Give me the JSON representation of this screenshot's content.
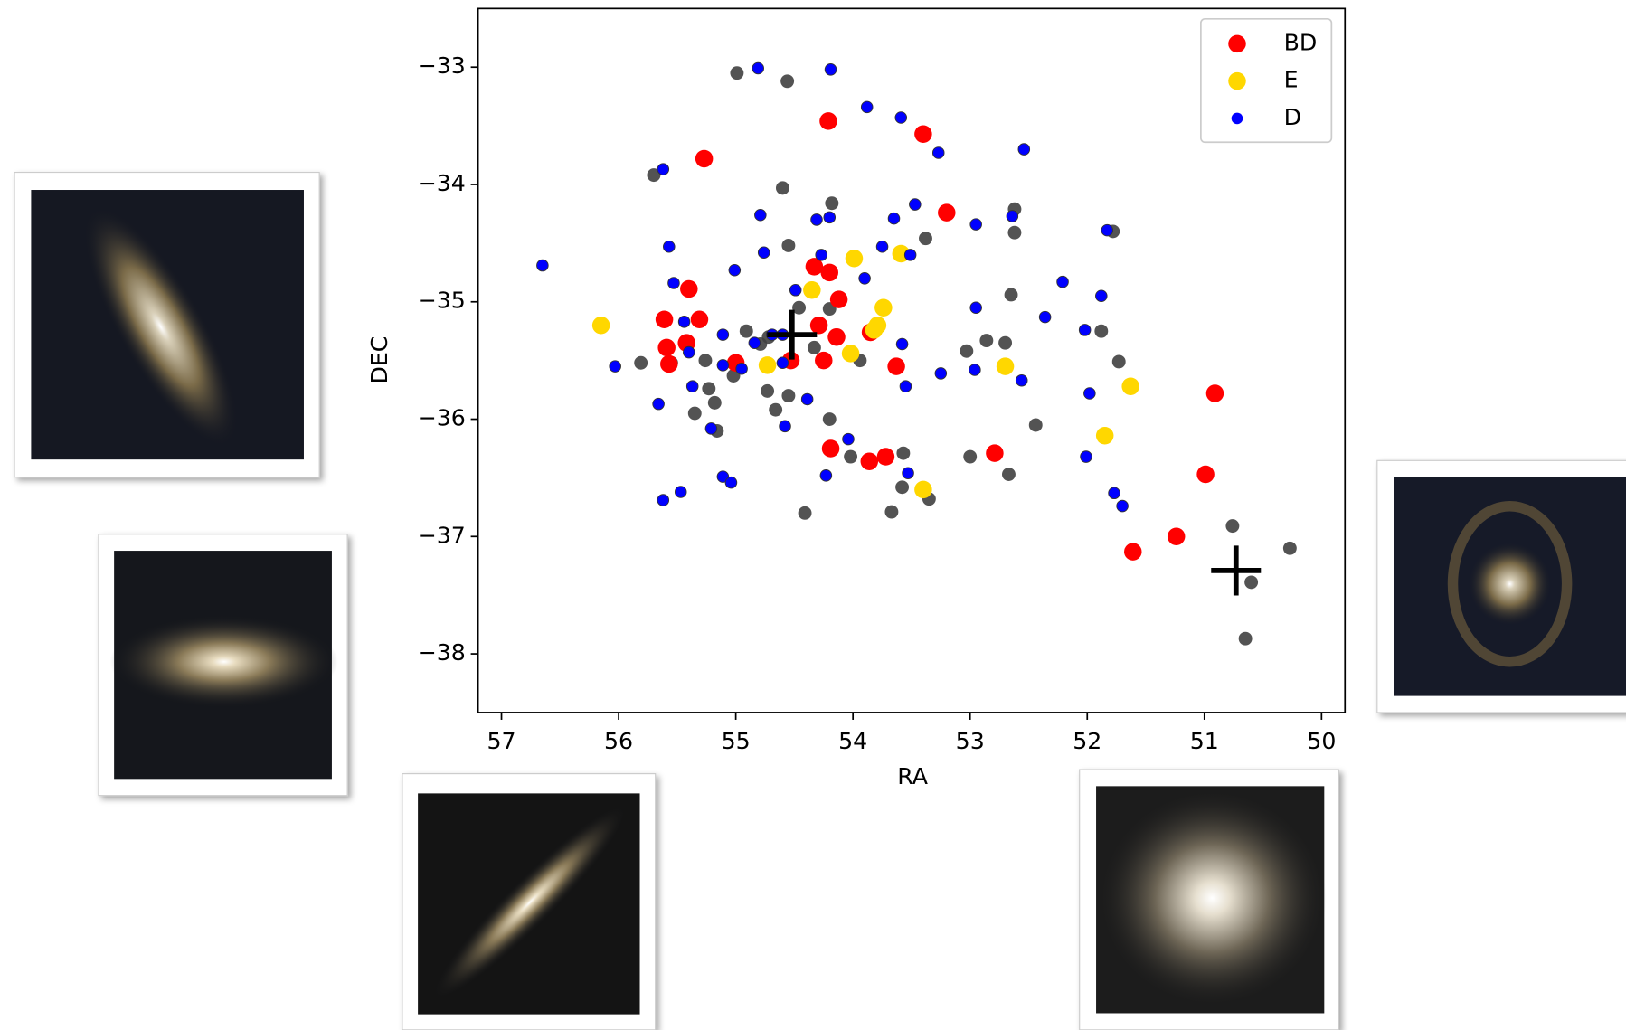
{
  "chart_data": {
    "type": "scatter",
    "x_label": "RA",
    "y_label": "DEC",
    "xlim": [
      57.2,
      49.8
    ],
    "ylim": [
      -38.5,
      -32.5
    ],
    "xticks": [
      57,
      56,
      55,
      54,
      53,
      52,
      51,
      50
    ],
    "yticks": [
      {
        "value": -33,
        "label": "−33"
      },
      {
        "value": -34,
        "label": "−34"
      },
      {
        "value": -35,
        "label": "−35"
      },
      {
        "value": -36,
        "label": "−36"
      },
      {
        "value": -37,
        "label": "−37"
      },
      {
        "value": -38,
        "label": "−38"
      }
    ],
    "legend": "upper right",
    "series": [
      {
        "color": "#404040",
        "marker": "o",
        "x": [
          54.99,
          54.56,
          55.7,
          54.6,
          54.18,
          54.55,
          54.2,
          54.46,
          54.33,
          54.79,
          54.91,
          54.72,
          55.81,
          55.55,
          55.26,
          55.02,
          55.23,
          55.18,
          55.35,
          55.16,
          54.73,
          54.66,
          54.55,
          54.2,
          54.02,
          53.57,
          53.58,
          53.67,
          54.41,
          53.35,
          53.0,
          52.67,
          52.44,
          53.03,
          52.86,
          52.7,
          52.65,
          52.62,
          52.62,
          51.88,
          51.73,
          51.78,
          50.76,
          50.6,
          50.65,
          50.27,
          53.94,
          53.38
        ],
        "y": [
          -33.05,
          -33.12,
          -33.92,
          -34.03,
          -34.16,
          -34.52,
          -35.06,
          -35.05,
          -35.39,
          -35.36,
          -35.25,
          -35.3,
          -35.52,
          -35.52,
          -35.5,
          -35.63,
          -35.74,
          -35.86,
          -35.95,
          -36.1,
          -35.76,
          -35.92,
          -35.8,
          -36.0,
          -36.32,
          -36.29,
          -36.58,
          -36.79,
          -36.8,
          -36.68,
          -36.32,
          -36.47,
          -36.05,
          -35.42,
          -35.33,
          -35.35,
          -34.94,
          -34.41,
          -34.21,
          -35.25,
          -35.51,
          -34.4,
          -36.91,
          -37.39,
          -37.87,
          -37.1,
          -35.5,
          -34.46
        ]
      },
      {
        "name": "BD",
        "color": "#ff0000",
        "marker": "o",
        "x": [
          54.21,
          53.4,
          55.27,
          53.2,
          55.4,
          55.61,
          55.31,
          55.59,
          55.42,
          55.57,
          55.0,
          54.33,
          54.2,
          54.12,
          54.29,
          54.14,
          54.53,
          54.25,
          53.63,
          53.85,
          54.19,
          53.86,
          53.72,
          52.79,
          50.91,
          50.99,
          51.24,
          51.61
        ],
        "y": [
          -33.46,
          -33.57,
          -33.78,
          -34.24,
          -34.89,
          -35.15,
          -35.15,
          -35.39,
          -35.35,
          -35.53,
          -35.52,
          -34.7,
          -34.75,
          -34.98,
          -35.2,
          -35.3,
          -35.5,
          -35.5,
          -35.55,
          -35.26,
          -36.25,
          -36.36,
          -36.32,
          -36.29,
          -35.78,
          -36.47,
          -37.0,
          -37.13
        ]
      },
      {
        "name": "E",
        "color": "#ffd700",
        "marker": "o",
        "x": [
          56.15,
          54.35,
          53.99,
          53.59,
          53.74,
          53.79,
          53.82,
          54.02,
          54.73,
          52.7,
          51.63,
          51.85,
          53.4
        ],
        "y": [
          -35.2,
          -34.9,
          -34.63,
          -34.59,
          -35.05,
          -35.2,
          -35.24,
          -35.44,
          -35.54,
          -35.55,
          -35.72,
          -36.14,
          -36.6
        ]
      },
      {
        "name": "D",
        "color": "#0000ff",
        "marker": "o",
        "x": [
          56.65,
          56.03,
          55.62,
          55.57,
          55.53,
          55.44,
          55.4,
          55.37,
          55.66,
          55.47,
          55.62,
          55.21,
          55.11,
          55.04,
          55.11,
          55.01,
          54.79,
          54.76,
          54.81,
          54.19,
          53.88,
          53.59,
          53.27,
          53.47,
          53.65,
          53.51,
          53.75,
          53.9,
          54.27,
          54.31,
          54.2,
          54.49,
          54.6,
          54.58,
          54.39,
          54.04,
          54.23,
          53.58,
          53.55,
          53.53,
          53.25,
          52.95,
          52.96,
          52.95,
          52.64,
          52.56,
          52.36,
          52.21,
          52.02,
          51.88,
          51.98,
          52.01,
          51.77,
          51.7,
          51.83,
          52.54,
          54.84,
          54.69,
          54.95,
          55.11,
          54.6
        ],
        "y": [
          -34.69,
          -35.55,
          -33.87,
          -34.53,
          -34.84,
          -35.17,
          -35.43,
          -35.72,
          -35.87,
          -36.62,
          -36.69,
          -36.08,
          -36.49,
          -36.54,
          -35.28,
          -34.73,
          -34.26,
          -34.58,
          -33.01,
          -33.02,
          -33.34,
          -33.43,
          -33.73,
          -34.17,
          -34.29,
          -34.6,
          -34.53,
          -34.8,
          -34.6,
          -34.3,
          -34.28,
          -34.9,
          -35.28,
          -36.06,
          -35.83,
          -36.17,
          -36.48,
          -35.36,
          -35.72,
          -36.46,
          -35.61,
          -35.05,
          -35.58,
          -34.34,
          -34.27,
          -35.67,
          -35.13,
          -34.83,
          -35.24,
          -34.95,
          -35.78,
          -36.32,
          -36.63,
          -36.74,
          -34.39,
          -33.7,
          -35.35,
          -35.28,
          -35.57,
          -35.54,
          -35.52
        ]
      },
      {
        "color": "#000000",
        "marker": "+",
        "x": [
          54.52,
          50.73
        ],
        "y": [
          -35.28,
          -37.29
        ]
      }
    ]
  }
}
